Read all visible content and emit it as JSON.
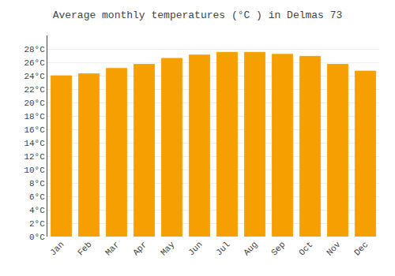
{
  "chart_data": {
    "type": "bar",
    "title": "Average monthly temperatures (°C ) in Delmas 73",
    "categories": [
      "Jan",
      "Feb",
      "Mar",
      "Apr",
      "May",
      "Jun",
      "Jul",
      "Aug",
      "Sep",
      "Oct",
      "Nov",
      "Dec"
    ],
    "values": [
      24.0,
      24.3,
      25.1,
      25.7,
      26.6,
      27.1,
      27.5,
      27.5,
      27.2,
      26.9,
      25.7,
      24.7
    ],
    "color": "#F5A000",
    "ylim": [
      0,
      30
    ],
    "yticks": [
      {
        "value": 0,
        "label": "0°C"
      },
      {
        "value": 2,
        "label": "2°C"
      },
      {
        "value": 4,
        "label": "4°C"
      },
      {
        "value": 6,
        "label": "6°C"
      },
      {
        "value": 8,
        "label": "8°C"
      },
      {
        "value": 10,
        "label": "10°C"
      },
      {
        "value": 12,
        "label": "12°C"
      },
      {
        "value": 14,
        "label": "14°C"
      },
      {
        "value": 16,
        "label": "16°C"
      },
      {
        "value": 18,
        "label": "18°C"
      },
      {
        "value": 20,
        "label": "20°C"
      },
      {
        "value": 22,
        "label": "22°C"
      },
      {
        "value": 24,
        "label": "24°C"
      },
      {
        "value": 26,
        "label": "26°C"
      },
      {
        "value": 28,
        "label": "28°C"
      }
    ],
    "grid": true
  }
}
